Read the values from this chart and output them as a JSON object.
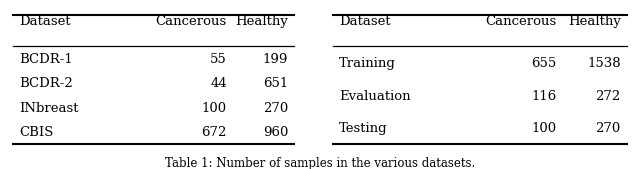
{
  "table1": {
    "headers": [
      "Dataset",
      "Cancerous",
      "Healthy"
    ],
    "rows": [
      [
        "BCDR-1",
        "55",
        "199"
      ],
      [
        "BCDR-2",
        "44",
        "651"
      ],
      [
        "INbreast",
        "100",
        "270"
      ],
      [
        "CBIS",
        "672",
        "960"
      ]
    ]
  },
  "table2": {
    "headers": [
      "Dataset",
      "Cancerous",
      "Healthy"
    ],
    "rows": [
      [
        "Training",
        "655",
        "1538"
      ],
      [
        "Evaluation",
        "116",
        "272"
      ],
      [
        "Testing",
        "100",
        "270"
      ]
    ]
  },
  "caption": "Table 1: Number of samples in the various datasets.",
  "bg_color": "#ffffff",
  "text_color": "#000000",
  "font_size": 9.5,
  "caption_font_size": 8.5
}
